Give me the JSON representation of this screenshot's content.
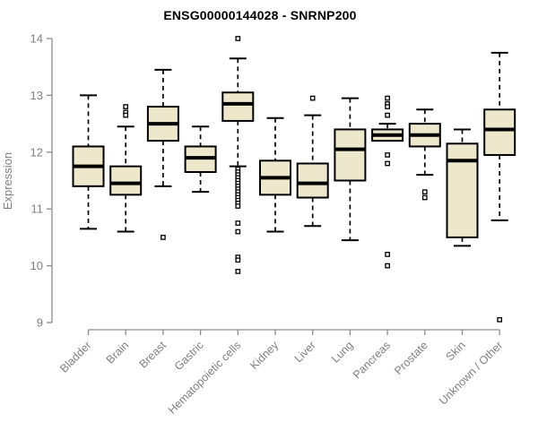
{
  "colors": {
    "box_fill": "#EDE7CB",
    "box_border": "#000000",
    "median": "#000000",
    "whisker": "#000000",
    "axis": "#8C8C8C",
    "text": "#7F7F7F",
    "title": "#000000",
    "background": "#FFFFFF"
  },
  "chart_data": {
    "type": "boxplot",
    "title": "ENSG00000144028 - SNRNP200",
    "xlabel": "",
    "ylabel": "Expression",
    "ylim": [
      9,
      14
    ],
    "y_ticks": [
      9,
      10,
      11,
      12,
      13,
      14
    ],
    "grid": "off",
    "whisker_style": "dashed",
    "outlier_marker": "open-square",
    "categories": [
      "Bladder",
      "Brain",
      "Breast",
      "Gastric",
      "Hematopoietic cells",
      "Kidney",
      "Liver",
      "Lung",
      "Pancreas",
      "Prostate",
      "Skin",
      "Unknown / Other"
    ],
    "series": [
      {
        "name": "Bladder",
        "low": 10.65,
        "q1": 11.4,
        "median": 11.75,
        "q3": 12.1,
        "high": 13.0,
        "outliers": []
      },
      {
        "name": "Brain",
        "low": 10.6,
        "q1": 11.25,
        "median": 11.45,
        "q3": 11.75,
        "high": 12.45,
        "outliers": [
          12.8,
          12.7,
          12.65
        ]
      },
      {
        "name": "Breast",
        "low": 11.4,
        "q1": 12.2,
        "median": 12.5,
        "q3": 12.8,
        "high": 13.45,
        "outliers": [
          10.5
        ]
      },
      {
        "name": "Gastric",
        "low": 11.3,
        "q1": 11.65,
        "median": 11.9,
        "q3": 12.1,
        "high": 12.45,
        "outliers": []
      },
      {
        "name": "Hematopoietic cells",
        "low": 11.75,
        "q1": 12.55,
        "median": 12.85,
        "q3": 13.05,
        "high": 13.65,
        "outliers": [
          14.0,
          11.7,
          11.65,
          11.6,
          11.55,
          11.5,
          11.45,
          11.4,
          11.35,
          11.3,
          11.25,
          11.2,
          11.15,
          11.1,
          11.05,
          10.75,
          10.6,
          10.15,
          10.1,
          9.9
        ]
      },
      {
        "name": "Kidney",
        "low": 10.6,
        "q1": 11.25,
        "median": 11.55,
        "q3": 11.85,
        "high": 12.6,
        "outliers": []
      },
      {
        "name": "Liver",
        "low": 10.7,
        "q1": 11.2,
        "median": 11.45,
        "q3": 11.8,
        "high": 12.65,
        "outliers": [
          12.95
        ]
      },
      {
        "name": "Lung",
        "low": 10.45,
        "q1": 11.5,
        "median": 12.05,
        "q3": 12.4,
        "high": 12.95,
        "outliers": []
      },
      {
        "name": "Pancreas",
        "low": 12.2,
        "q1": 12.2,
        "median": 12.3,
        "q3": 12.4,
        "high": 12.5,
        "outliers": [
          12.95,
          12.85,
          12.8,
          12.65,
          11.95,
          11.8,
          10.2,
          10.0
        ]
      },
      {
        "name": "Prostate",
        "low": 11.6,
        "q1": 12.1,
        "median": 12.3,
        "q3": 12.5,
        "high": 12.75,
        "outliers": [
          11.3,
          11.2
        ]
      },
      {
        "name": "Skin",
        "low": 10.35,
        "q1": 10.5,
        "median": 11.85,
        "q3": 12.15,
        "high": 12.4,
        "outliers": []
      },
      {
        "name": "Unknown / Other",
        "low": 10.8,
        "q1": 11.95,
        "median": 12.4,
        "q3": 12.75,
        "high": 13.75,
        "outliers": [
          9.05
        ]
      }
    ]
  }
}
